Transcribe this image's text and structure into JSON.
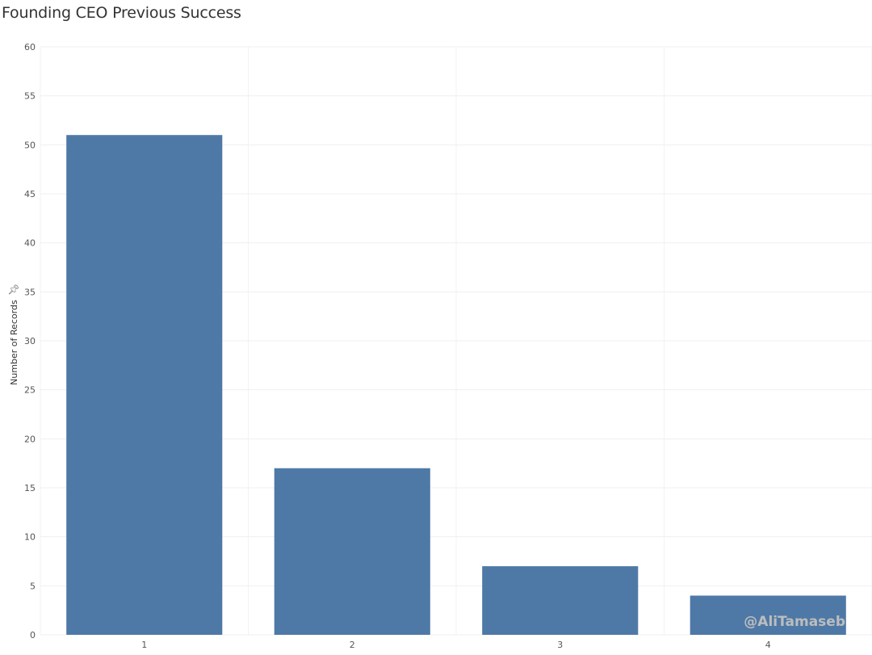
{
  "title": "Founding CEO Previous Success",
  "watermark": "@AliTamaseb",
  "icons": {
    "pin": "pin-icon"
  },
  "colors": {
    "bar": "#4e79a7",
    "grid": "#efefef",
    "axis_text": "#555555"
  },
  "chart_data": {
    "type": "bar",
    "title": "Founding CEO Previous Success",
    "xlabel": "",
    "ylabel": "Number of Records",
    "categories": [
      "1",
      "2",
      "3",
      "4"
    ],
    "values": [
      51,
      17,
      7,
      4
    ],
    "ylim": [
      0,
      60
    ],
    "yticks": [
      0,
      5,
      10,
      15,
      20,
      25,
      30,
      35,
      40,
      45,
      50,
      55,
      60
    ],
    "grid": true,
    "legend": "none"
  }
}
